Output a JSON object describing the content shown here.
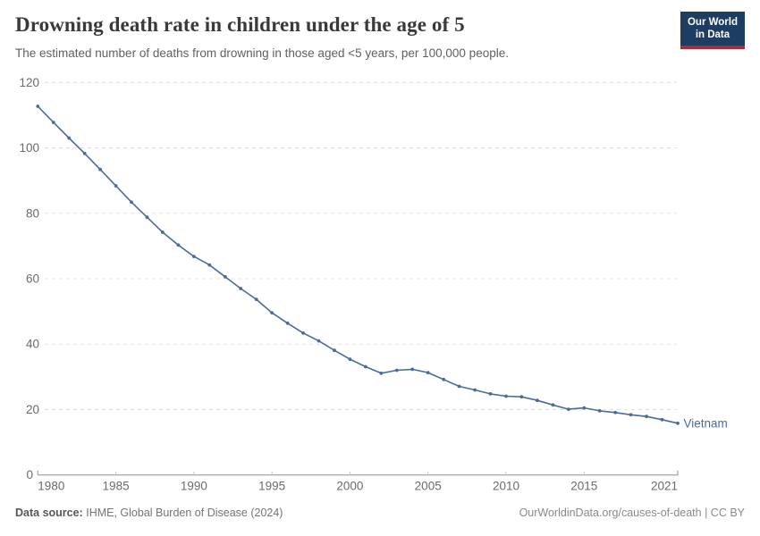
{
  "header": {
    "title": "Drowning death rate in children under the age of 5",
    "subtitle": "The estimated number of deaths from drowning in those aged <5 years, per 100,000 people.",
    "logo": {
      "line1": "Our World",
      "line2": "in Data",
      "bg_color": "#1d3d63",
      "bar_color": "#a62d37"
    }
  },
  "chart_data": {
    "type": "line",
    "title": "Drowning death rate in children under the age of 5",
    "xlabel": "",
    "ylabel": "",
    "ylim": [
      0,
      120
    ],
    "yticks": [
      0,
      20,
      40,
      60,
      80,
      100,
      120
    ],
    "xticks": [
      1980,
      1985,
      1990,
      1995,
      2000,
      2005,
      2010,
      2015,
      2021
    ],
    "grid": "horizontal-dashed",
    "legend_position": "end-of-line-label",
    "x": [
      1980,
      1981,
      1982,
      1983,
      1984,
      1985,
      1986,
      1987,
      1988,
      1989,
      1990,
      1991,
      1992,
      1993,
      1994,
      1995,
      1996,
      1997,
      1998,
      1999,
      2000,
      2001,
      2002,
      2003,
      2004,
      2005,
      2006,
      2007,
      2008,
      2009,
      2010,
      2011,
      2012,
      2013,
      2014,
      2015,
      2016,
      2017,
      2018,
      2019,
      2020,
      2021
    ],
    "series": [
      {
        "name": "Vietnam",
        "color": "#4C6A9C",
        "values": [
          112.7,
          107.8,
          103,
          98.3,
          93.4,
          88.4,
          83.4,
          78.8,
          74.2,
          70.3,
          66.8,
          64.2,
          60.6,
          57,
          53.7,
          49.6,
          46.4,
          43.4,
          41,
          38.1,
          35.4,
          33.1,
          31.1,
          32,
          32.3,
          31.3,
          29.2,
          27.1,
          26,
          24.8,
          24.1,
          23.9,
          22.8,
          21.4,
          20.1,
          20.5,
          19.6,
          19.1,
          18.4,
          17.9,
          16.9,
          15.8
        ]
      }
    ],
    "colors": {
      "grid": "#e0e0e0",
      "axis": "#8f8f8f",
      "minor_tick": "#c8c8c8",
      "tick_label": "#6b6b6b"
    }
  },
  "footer": {
    "datasource_label": "Data source:",
    "datasource_value": "IHME, Global Burden of Disease (2024)",
    "credit": "OurWorldinData.org/causes-of-death | CC BY"
  }
}
